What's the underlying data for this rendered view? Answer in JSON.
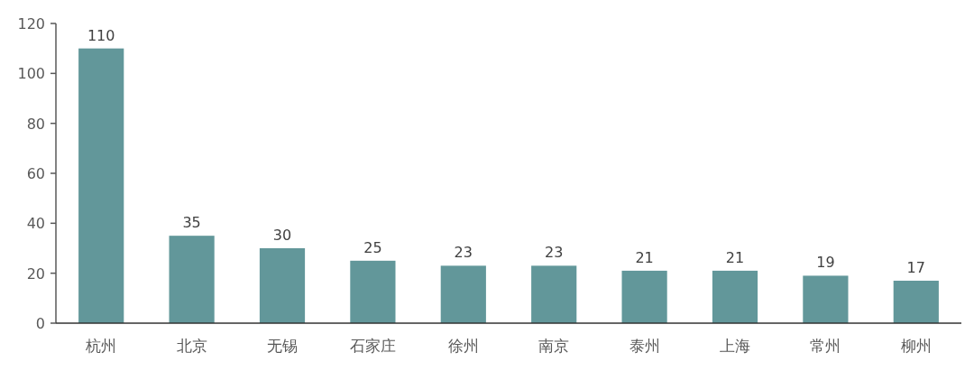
{
  "chart_data": {
    "type": "bar",
    "categories": [
      "杭州",
      "北京",
      "无锡",
      "石家庄",
      "徐州",
      "南京",
      "泰州",
      "上海",
      "常州",
      "柳州"
    ],
    "values": [
      110,
      35,
      30,
      25,
      23,
      23,
      21,
      21,
      19,
      17
    ],
    "color": "#62979a",
    "ylim": [
      0,
      120
    ],
    "yticks": [
      0,
      20,
      40,
      60,
      80,
      100,
      120
    ],
    "data_labels": true
  }
}
